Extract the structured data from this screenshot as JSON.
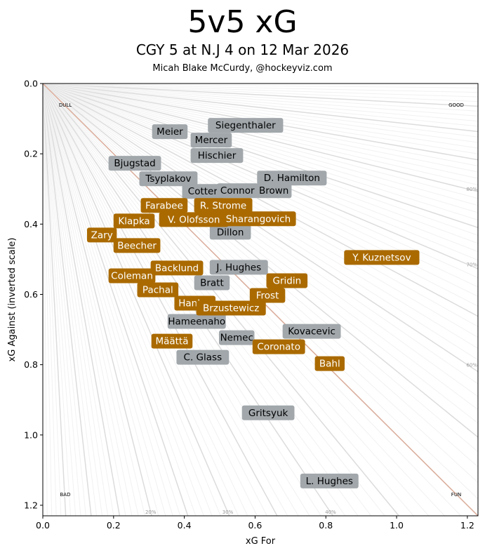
{
  "chart_data": {
    "type": "scatter",
    "title": "5v5 xG",
    "subtitle": "CGY 5 at N.J 4 on 12 Mar 2026",
    "credit": "Micah Blake McCurdy, @hockeyviz.com",
    "xlabel": "xG For",
    "ylabel": "xG Against (inverted scale)",
    "xlim": [
      0,
      1.23
    ],
    "ylim": [
      1.23,
      0
    ],
    "xticks": [
      "0.0",
      "0.2",
      "0.4",
      "0.6",
      "0.8",
      "1.0",
      "1.2"
    ],
    "yticks": [
      "0.0",
      "0.2",
      "0.4",
      "0.6",
      "0.8",
      "1.0",
      "1.2"
    ],
    "corner_labels": {
      "top_left": "DULL",
      "top_right": "GOOD",
      "bottom_left": "BAD",
      "bottom_right": "FUN"
    },
    "percent_labels": [
      "20%",
      "30%",
      "40%",
      "60%",
      "70%",
      "80%"
    ],
    "colors": {
      "CGY": "#aa6a00",
      "NJ": "#a1a7ab",
      "diagonal": "#dcae9c"
    },
    "series": [
      {
        "name": "N.J",
        "team": "NJ",
        "points": [
          {
            "label": "Siegenthaler",
            "x": 0.573,
            "y": 0.118
          },
          {
            "label": "Meier",
            "x": 0.359,
            "y": 0.136
          },
          {
            "label": "Mercer",
            "x": 0.476,
            "y": 0.16
          },
          {
            "label": "Hischier",
            "x": 0.492,
            "y": 0.204
          },
          {
            "label": "Bjugstad",
            "x": 0.26,
            "y": 0.226
          },
          {
            "label": "Tsyplakov",
            "x": 0.355,
            "y": 0.27
          },
          {
            "label": "D. Hamilton",
            "x": 0.704,
            "y": 0.268
          },
          {
            "label": "Cotter",
            "x": 0.452,
            "y": 0.306
          },
          {
            "label": "Connor",
            "x": 0.55,
            "y": 0.304
          },
          {
            "label": "Brown",
            "x": 0.653,
            "y": 0.304
          },
          {
            "label": "Dillon",
            "x": 0.53,
            "y": 0.422
          },
          {
            "label": "J. Hughes",
            "x": 0.554,
            "y": 0.522
          },
          {
            "label": "Bratt",
            "x": 0.478,
            "y": 0.566
          },
          {
            "label": "Hameenaho",
            "x": 0.435,
            "y": 0.676
          },
          {
            "label": "Nemec",
            "x": 0.548,
            "y": 0.722
          },
          {
            "label": "Kovacevic",
            "x": 0.76,
            "y": 0.704
          },
          {
            "label": "C. Glass",
            "x": 0.452,
            "y": 0.778
          },
          {
            "label": "Gritsyuk",
            "x": 0.637,
            "y": 0.936
          },
          {
            "label": "L. Hughes",
            "x": 0.81,
            "y": 1.13
          }
        ]
      },
      {
        "name": "CGY",
        "team": "CGY",
        "points": [
          {
            "label": "Farabee",
            "x": 0.343,
            "y": 0.346
          },
          {
            "label": "R. Strome",
            "x": 0.51,
            "y": 0.346
          },
          {
            "label": "Klapka",
            "x": 0.258,
            "y": 0.39
          },
          {
            "label": "V. Olofsson",
            "x": 0.427,
            "y": 0.386
          },
          {
            "label": "Sharangovich",
            "x": 0.609,
            "y": 0.384
          },
          {
            "label": "Zary",
            "x": 0.167,
            "y": 0.43
          },
          {
            "label": "Beecher",
            "x": 0.266,
            "y": 0.46
          },
          {
            "label": "Backlund",
            "x": 0.379,
            "y": 0.524
          },
          {
            "label": "Coleman",
            "x": 0.252,
            "y": 0.546
          },
          {
            "label": "Pachal",
            "x": 0.325,
            "y": 0.586
          },
          {
            "label": "Gridin",
            "x": 0.69,
            "y": 0.56
          },
          {
            "label": "Frost",
            "x": 0.635,
            "y": 0.602
          },
          {
            "label": "Hanley",
            "x": 0.43,
            "y": 0.624
          },
          {
            "label": "Brzustewicz",
            "x": 0.532,
            "y": 0.638
          },
          {
            "label": "Y. Kuznetsov",
            "x": 0.958,
            "y": 0.494
          },
          {
            "label": "Määttä",
            "x": 0.365,
            "y": 0.732
          },
          {
            "label": "Coronato",
            "x": 0.667,
            "y": 0.748
          },
          {
            "label": "Bahl",
            "x": 0.811,
            "y": 0.796
          }
        ]
      }
    ]
  }
}
